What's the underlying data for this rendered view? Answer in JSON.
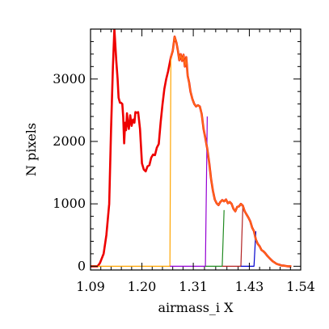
{
  "chart_data": {
    "type": "line",
    "xlabel": "airmass_i X",
    "ylabel": "N pixels",
    "xlim": [
      1.09,
      1.54
    ],
    "ylim": [
      -60,
      3800
    ],
    "x_ticks": [
      "1.09",
      "1.20",
      "1.31",
      "1.43",
      "1.54"
    ],
    "x_tick_values": [
      1.09,
      1.2,
      1.31,
      1.43,
      1.54
    ],
    "y_ticks": [
      "0",
      "1000",
      "2000",
      "3000"
    ],
    "y_tick_values": [
      0,
      1000,
      2000,
      3000
    ],
    "grid": false,
    "series": [
      {
        "color": "#ee0000",
        "width": 2.6,
        "x": [
          1.09,
          1.105,
          1.11,
          1.118,
          1.124,
          1.13,
          1.134,
          1.138,
          1.141,
          1.145,
          1.148,
          1.15,
          1.153,
          1.155,
          1.158,
          1.16,
          1.162,
          1.164,
          1.166,
          1.168,
          1.17,
          1.172,
          1.175,
          1.178,
          1.181,
          1.184,
          1.186,
          1.189,
          1.192,
          1.196,
          1.2,
          1.204,
          1.208,
          1.212,
          1.216,
          1.22,
          1.224,
          1.228,
          1.232,
          1.236,
          1.24,
          1.244,
          1.248,
          1.252,
          1.256,
          1.262,
          1.266,
          1.27,
          1.274,
          1.277,
          1.28,
          1.283,
          1.286,
          1.289,
          1.292,
          1.295,
          1.298,
          1.301,
          1.304,
          1.308,
          1.312,
          1.316,
          1.32,
          1.324,
          1.328,
          1.332,
          1.336,
          1.34,
          1.344,
          1.348,
          1.352,
          1.356,
          1.36,
          1.364,
          1.368,
          1.372,
          1.376,
          1.38,
          1.384,
          1.388,
          1.392,
          1.396,
          1.4,
          1.404,
          1.408,
          1.412,
          1.416,
          1.42,
          1.424,
          1.428,
          1.432,
          1.436,
          1.44,
          1.444,
          1.448,
          1.452,
          1.456,
          1.46,
          1.464,
          1.468,
          1.472,
          1.476,
          1.48,
          1.484,
          1.488,
          1.492,
          1.496,
          1.5,
          1.504,
          1.508,
          1.512,
          1.516,
          1.52
        ],
        "y": [
          0,
          0,
          50,
          200,
          500,
          1000,
          2200,
          3200,
          3800,
          3300,
          3000,
          2700,
          2620,
          2620,
          2600,
          2400,
          1970,
          2300,
          2180,
          2450,
          2280,
          2200,
          2420,
          2250,
          2350,
          2300,
          2470,
          2460,
          2470,
          2200,
          1650,
          1550,
          1520,
          1600,
          1620,
          1740,
          1790,
          1780,
          1900,
          1960,
          2300,
          2590,
          2840,
          3000,
          3120,
          3350,
          3450,
          3680,
          3580,
          3460,
          3300,
          3400,
          3290,
          3390,
          3200,
          3350,
          3050,
          2950,
          2800,
          2680,
          2600,
          2560,
          2580,
          2560,
          2440,
          2200,
          2050,
          1880,
          1660,
          1400,
          1210,
          1070,
          1010,
          980,
          1030,
          1060,
          1040,
          1070,
          1010,
          1030,
          1000,
          920,
          880,
          950,
          960,
          1000,
          970,
          880,
          830,
          780,
          720,
          620,
          560,
          430,
          360,
          320,
          260,
          240,
          210,
          170,
          140,
          110,
          80,
          60,
          40,
          30,
          20,
          10,
          10,
          5,
          0,
          0,
          0
        ]
      },
      {
        "color": "#ffa500",
        "width": 1.2,
        "x": [
          1.09,
          1.26,
          1.262
        ],
        "y": [
          0,
          0,
          3350
        ]
      },
      {
        "color": "#9400d3",
        "width": 1.2,
        "x": [
          1.26,
          1.336,
          1.34
        ],
        "y": [
          0,
          0,
          2400
        ]
      },
      {
        "color": "#228b22",
        "width": 1.2,
        "x": [
          1.336,
          1.372,
          1.376
        ],
        "y": [
          0,
          0,
          900
        ]
      },
      {
        "color": "#b22222",
        "width": 1.2,
        "x": [
          1.372,
          1.412,
          1.416
        ],
        "y": [
          0,
          0,
          950
        ]
      },
      {
        "color": "#0000cd",
        "width": 1.2,
        "x": [
          1.412,
          1.44,
          1.444
        ],
        "y": [
          0,
          0,
          560
        ]
      },
      {
        "color": "#ff6a1a",
        "width": 1.8,
        "x": [
          1.262,
          1.266,
          1.27,
          1.274,
          1.277,
          1.28,
          1.283,
          1.286,
          1.289,
          1.292,
          1.295,
          1.298,
          1.301,
          1.304,
          1.308,
          1.312,
          1.316,
          1.32,
          1.324,
          1.328,
          1.332,
          1.336,
          1.34,
          1.344,
          1.348,
          1.352,
          1.356,
          1.36,
          1.364,
          1.368,
          1.372,
          1.376,
          1.38,
          1.384,
          1.388,
          1.392,
          1.396,
          1.4,
          1.404,
          1.408,
          1.412,
          1.416,
          1.42,
          1.424,
          1.428,
          1.432,
          1.436,
          1.44,
          1.444,
          1.448,
          1.452,
          1.456,
          1.46,
          1.464,
          1.468,
          1.472,
          1.476,
          1.48,
          1.484,
          1.488,
          1.492,
          1.496,
          1.5,
          1.504,
          1.508,
          1.512,
          1.516,
          1.52
        ],
        "y": [
          3350,
          3450,
          3680,
          3580,
          3460,
          3300,
          3400,
          3290,
          3390,
          3200,
          3350,
          3050,
          2950,
          2800,
          2680,
          2600,
          2560,
          2580,
          2560,
          2440,
          2200,
          2050,
          1880,
          1660,
          1400,
          1210,
          1070,
          1010,
          980,
          1030,
          1060,
          1040,
          1070,
          1010,
          1030,
          1000,
          920,
          880,
          950,
          960,
          1000,
          970,
          880,
          830,
          780,
          720,
          620,
          560,
          430,
          360,
          320,
          260,
          240,
          210,
          170,
          140,
          110,
          80,
          60,
          40,
          30,
          20,
          10,
          10,
          5,
          0,
          0,
          0
        ]
      }
    ]
  }
}
